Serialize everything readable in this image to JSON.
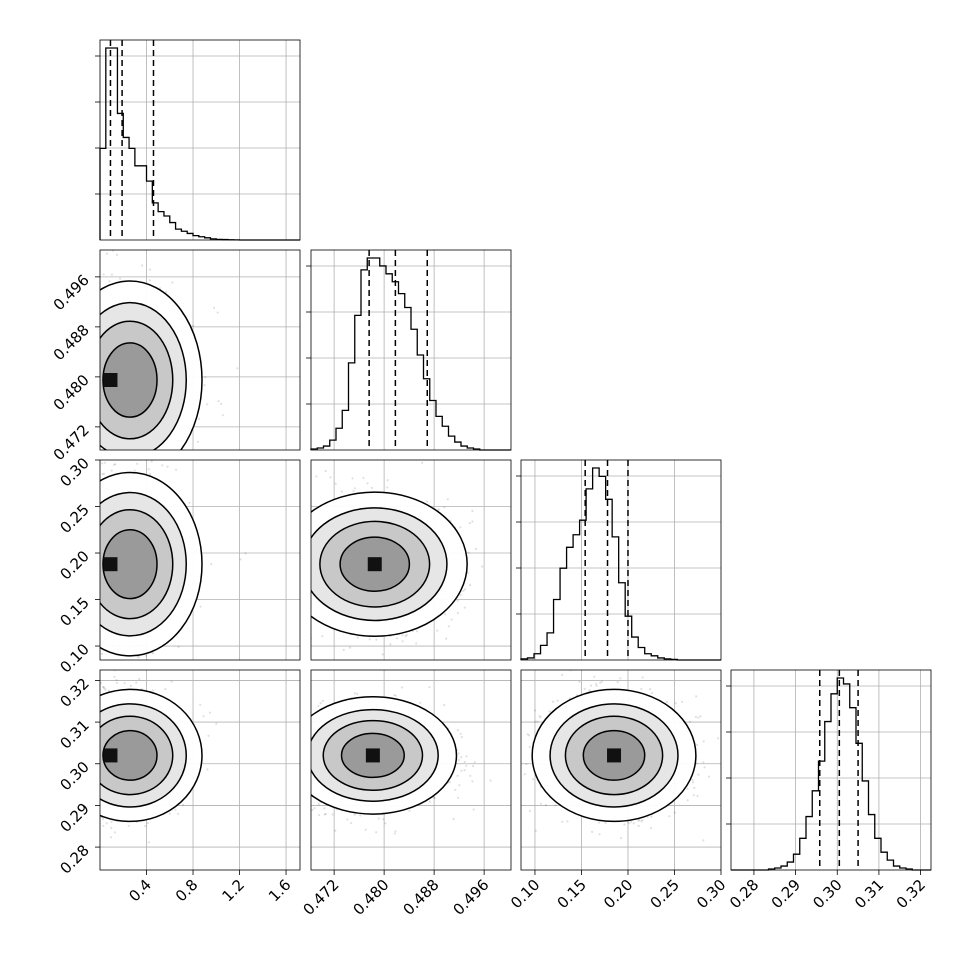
{
  "chart_data": {
    "type": "scatter",
    "title": "",
    "parameters": [
      {
        "ticks": [
          0.4,
          0.8,
          1.2,
          1.6
        ],
        "tick_labels": [
          "0.4",
          "0.8",
          "1.2",
          "1.6"
        ],
        "range": [
          0.0,
          1.72
        ]
      },
      {
        "ticks": [
          0.472,
          0.48,
          0.488,
          0.496
        ],
        "tick_labels": [
          "0.472",
          "0.480",
          "0.488",
          "0.496"
        ],
        "range": [
          0.4683,
          0.5003
        ]
      },
      {
        "ticks": [
          0.1,
          0.15,
          0.2,
          0.25,
          0.3
        ],
        "tick_labels": [
          "0.10",
          "0.15",
          "0.20",
          "0.25",
          "0.30"
        ],
        "range": [
          0.085,
          0.3
        ]
      },
      {
        "ticks": [
          0.28,
          0.29,
          0.3,
          0.31,
          0.32
        ],
        "tick_labels": [
          "0.28",
          "0.29",
          "0.30",
          "0.31",
          "0.32"
        ],
        "range": [
          0.2745,
          0.3225
        ]
      }
    ],
    "grid": true,
    "diagonal_histograms": [
      {
        "bin_edges": [
          0.0,
          0.05,
          0.1,
          0.15,
          0.2,
          0.25,
          0.3,
          0.35,
          0.4,
          0.45,
          0.5,
          0.55,
          0.6,
          0.65,
          0.7,
          0.75,
          0.8,
          0.85,
          0.9,
          0.95,
          1.0,
          1.05,
          1.1,
          1.15,
          1.2,
          1.25,
          1.3,
          1.35,
          1.4,
          1.45,
          1.5,
          1.55,
          1.6,
          1.65,
          1.72
        ],
        "counts": [
          42,
          88,
          88,
          58,
          47,
          42,
          34,
          34,
          27,
          17,
          13,
          11,
          8,
          5,
          4,
          3,
          2,
          1.5,
          1,
          0.5,
          0.3,
          0.2,
          0.1,
          0.05,
          0,
          0,
          0,
          0,
          0,
          0,
          0,
          0,
          0,
          0
        ],
        "quantiles": [
          0.09,
          0.19,
          0.46
        ]
      },
      {
        "bin_edges": [
          0.4683,
          0.4693,
          0.4703,
          0.4713,
          0.4723,
          0.4733,
          0.4743,
          0.4753,
          0.4763,
          0.4773,
          0.4783,
          0.4793,
          0.4803,
          0.4813,
          0.4823,
          0.4833,
          0.4843,
          0.4853,
          0.4863,
          0.4873,
          0.4883,
          0.4893,
          0.4903,
          0.4913,
          0.4923,
          0.4933,
          0.4943,
          0.4953,
          0.4963,
          0.4973,
          0.4983,
          0.4993,
          0.5003
        ],
        "counts": [
          0.5,
          1,
          2,
          5,
          11,
          20,
          44,
          68,
          91,
          97,
          97,
          93,
          89,
          85,
          79,
          72,
          61,
          48,
          36,
          25,
          17,
          12,
          7,
          4,
          2,
          1,
          0.5,
          0,
          0,
          0,
          0,
          0
        ],
        "quantiles": [
          0.4776,
          0.4818,
          0.4869
        ]
      },
      {
        "bin_edges": [
          0.085,
          0.092,
          0.099,
          0.106,
          0.113,
          0.12,
          0.127,
          0.134,
          0.141,
          0.148,
          0.155,
          0.162,
          0.169,
          0.176,
          0.183,
          0.19,
          0.197,
          0.204,
          0.211,
          0.218,
          0.225,
          0.232,
          0.239,
          0.246,
          0.253,
          0.26,
          0.267,
          0.274,
          0.281,
          0.288,
          0.295,
          0.3
        ],
        "counts": [
          0.5,
          1,
          3,
          7,
          13,
          29,
          44,
          54,
          60,
          67,
          82,
          92,
          88,
          77,
          59,
          37,
          21,
          11,
          6,
          3,
          2,
          1,
          0.5,
          0.3,
          0,
          0,
          0,
          0,
          0,
          0,
          0
        ],
        "quantiles": [
          0.154,
          0.178,
          0.2
        ]
      },
      {
        "bin_edges": [
          0.2745,
          0.276,
          0.2775,
          0.279,
          0.2805,
          0.282,
          0.2835,
          0.285,
          0.2865,
          0.288,
          0.2895,
          0.291,
          0.2925,
          0.294,
          0.2955,
          0.297,
          0.2985,
          0.3,
          0.3015,
          0.303,
          0.3045,
          0.306,
          0.3075,
          0.309,
          0.3105,
          0.312,
          0.3135,
          0.315,
          0.3165,
          0.318,
          0.3195,
          0.321,
          0.3225
        ],
        "counts": [
          0,
          0,
          0,
          0,
          0,
          0,
          0.5,
          1,
          2,
          4,
          8,
          16,
          27,
          40,
          55,
          75,
          89,
          97,
          94,
          82,
          64,
          45,
          28,
          16,
          9,
          5,
          2,
          1,
          0.5,
          0,
          0,
          0
        ],
        "quantiles": [
          0.2958,
          0.3005,
          0.305
        ]
      }
    ],
    "pair_panels": [
      {
        "row": 1,
        "col": 0,
        "mode": [
          0.09,
          0.4795
        ],
        "spread": [
          0.22,
          0.0045
        ]
      },
      {
        "row": 2,
        "col": 0,
        "mode": [
          0.09,
          0.188
        ],
        "spread": [
          0.2,
          0.028
        ]
      },
      {
        "row": 2,
        "col": 1,
        "mode": [
          0.4785,
          0.188
        ],
        "spread": [
          0.0042,
          0.022
        ]
      },
      {
        "row": 3,
        "col": 0,
        "mode": [
          0.09,
          0.302
        ],
        "spread": [
          0.2,
          0.0045
        ]
      },
      {
        "row": 3,
        "col": 1,
        "mode": [
          0.4782,
          0.302
        ],
        "spread": [
          0.0038,
          0.004
        ]
      },
      {
        "row": 3,
        "col": 2,
        "mode": [
          0.185,
          0.302
        ],
        "spread": [
          0.025,
          0.0045
        ]
      }
    ]
  }
}
